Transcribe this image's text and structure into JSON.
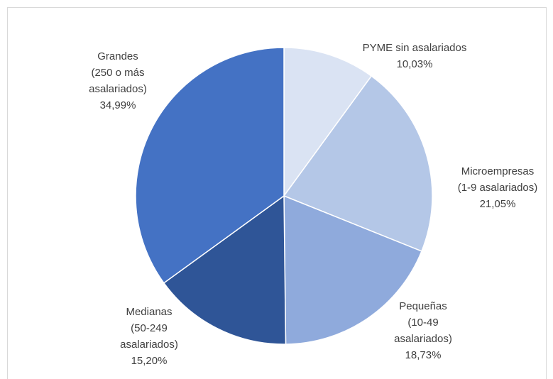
{
  "chart_data": {
    "type": "pie",
    "categories": [
      "PYME sin asalariados",
      "Microempresas\n(1-9 asalariados)",
      "Pequeñas\n(10-49\nasalariados)",
      "Medianas\n(50-249\nasalariados)",
      "Grandes\n(250 o más\nasalariados)"
    ],
    "values": [
      10.03,
      21.05,
      18.73,
      15.2,
      34.99
    ],
    "value_labels": [
      "10,03%",
      "21,05%",
      "18,73%",
      "15,20%",
      "34,99%"
    ],
    "colors": [
      "#dae3f3",
      "#b4c7e7",
      "#8faadc",
      "#2f5597",
      "#4472c4"
    ]
  }
}
